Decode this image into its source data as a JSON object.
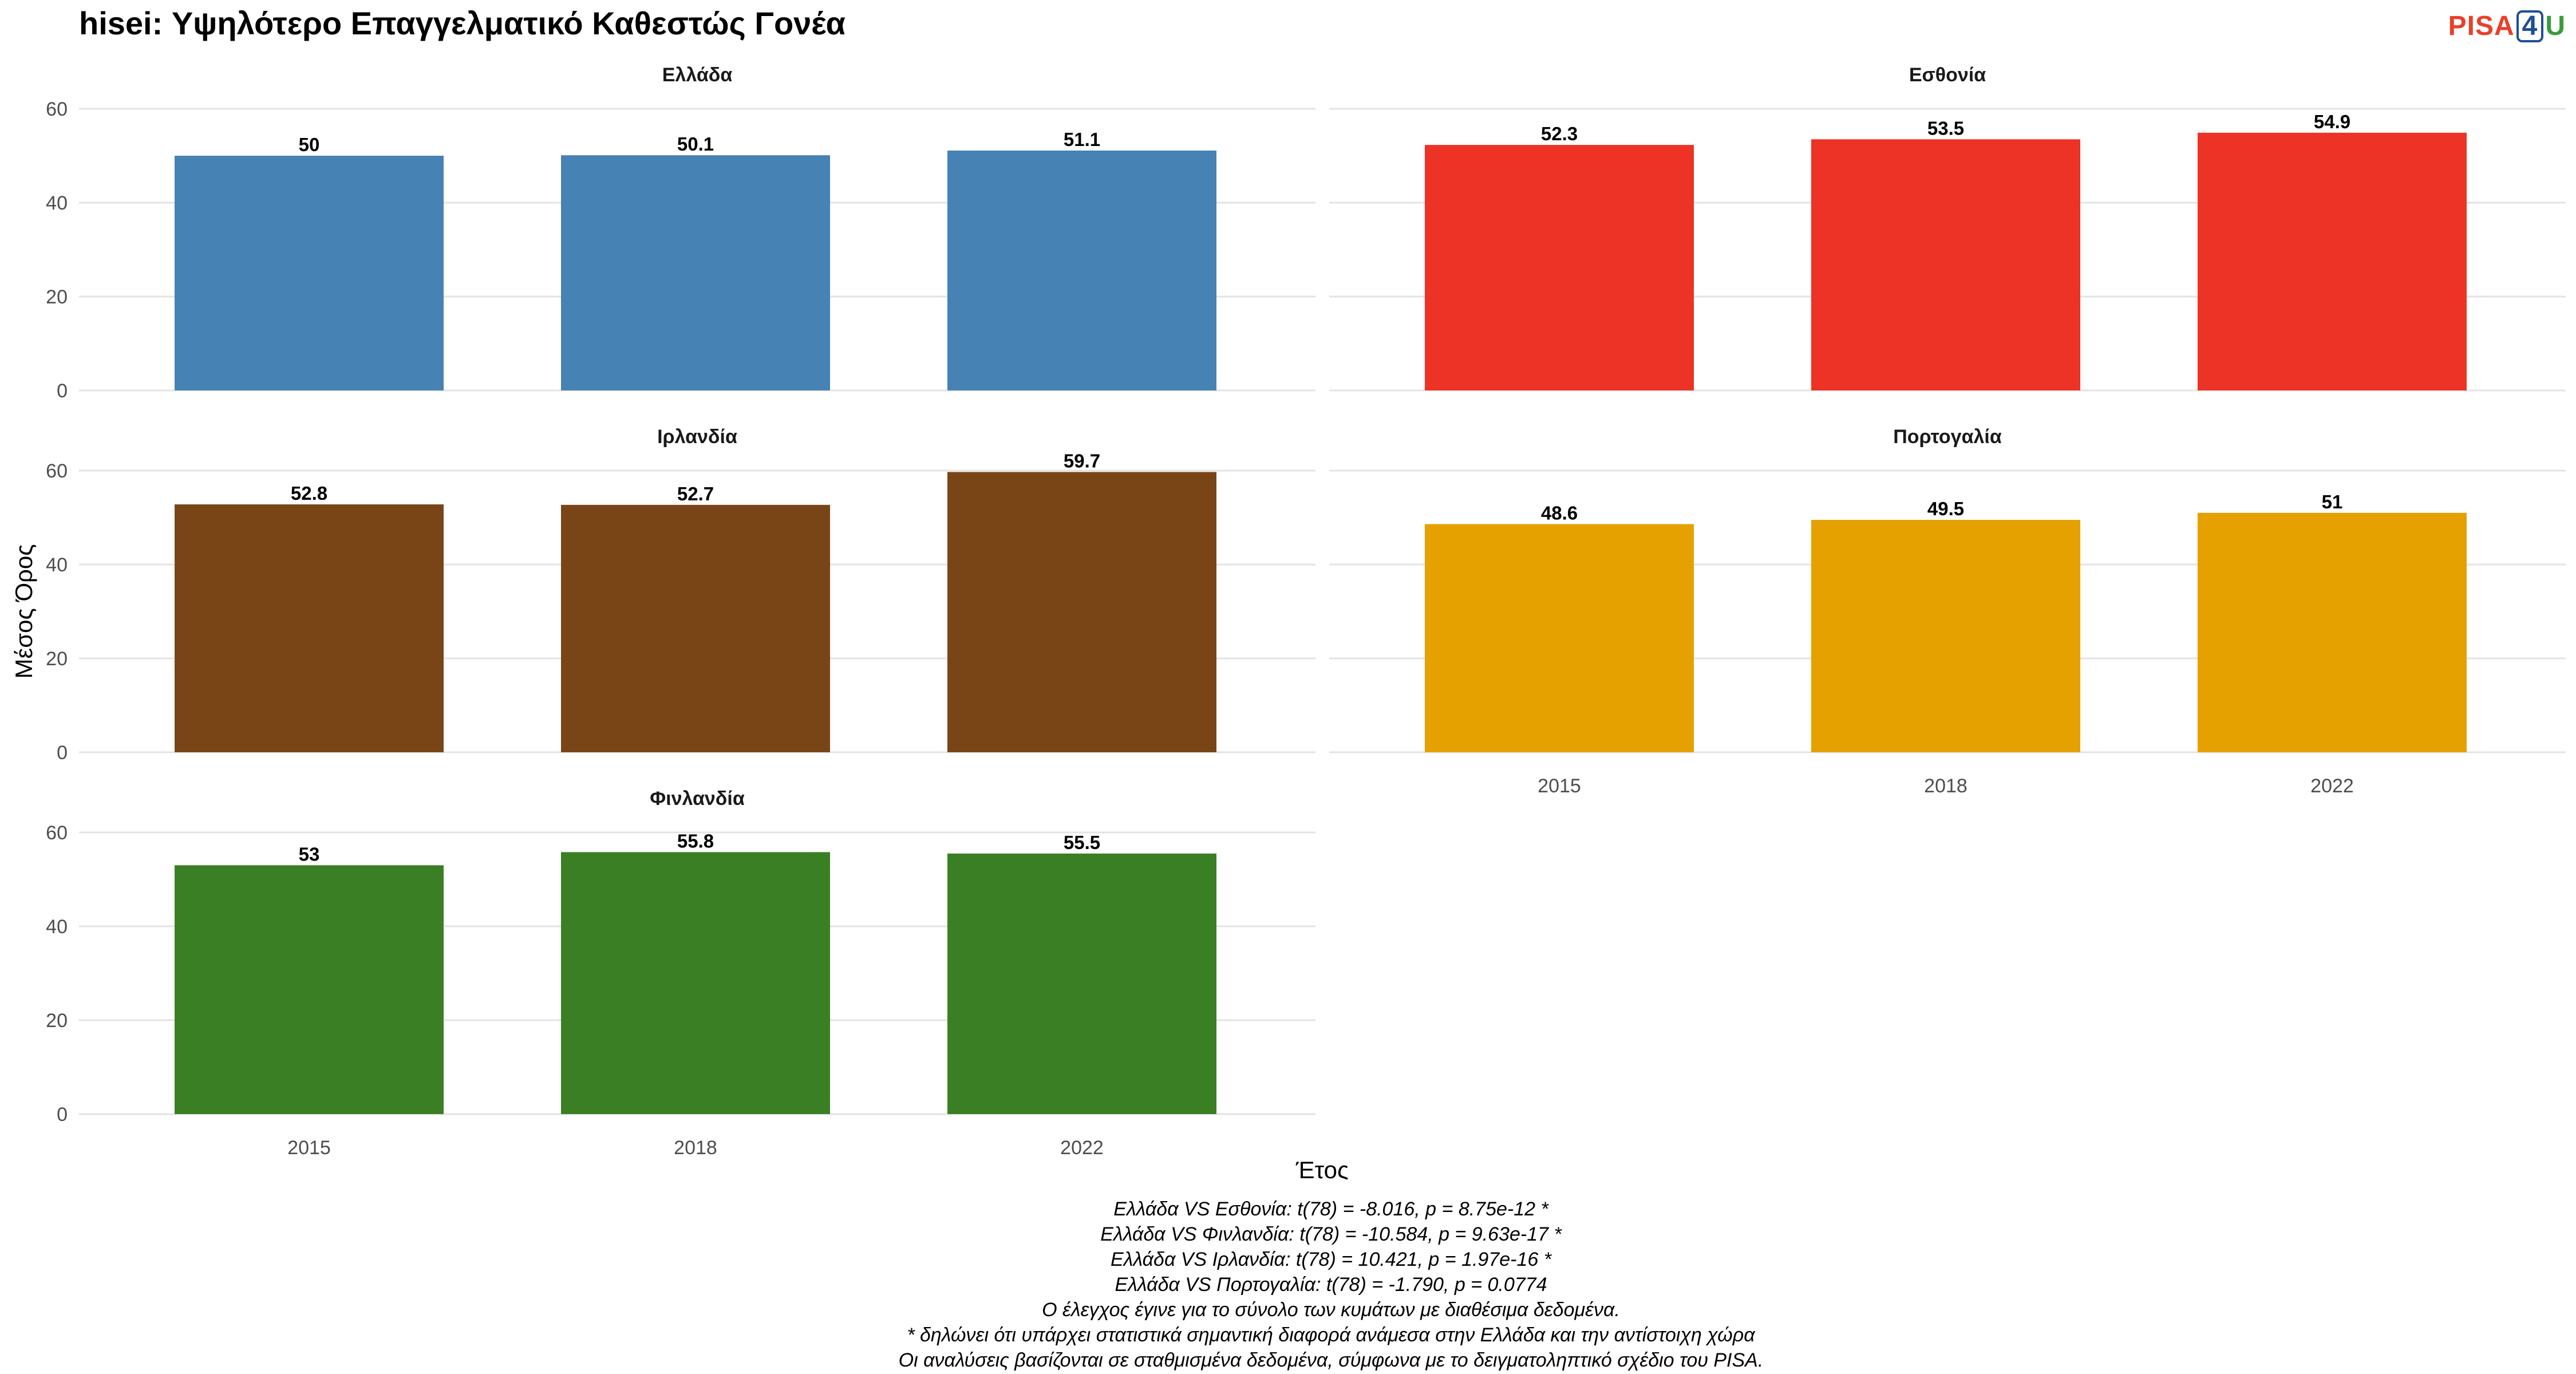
{
  "title": "hisei: Υψηλότερο Επαγγελματικό Καθεστώς Γονέα",
  "logo": {
    "p": "PISA",
    "four": "4",
    "u": "U"
  },
  "chart_data": {
    "type": "bar",
    "xlabel": "Έτος",
    "ylabel": "Μέσος Όρος",
    "ylim": [
      0,
      60
    ],
    "yticks": [
      0,
      20,
      40,
      60
    ],
    "categories": [
      "2015",
      "2018",
      "2022"
    ],
    "grid": true,
    "panels": [
      {
        "name": "Ελλάδα",
        "color": "#4682b4",
        "values": [
          50,
          50.1,
          51.1
        ],
        "labels": [
          "50",
          "50.1",
          "51.1"
        ]
      },
      {
        "name": "Εσθονία",
        "color": "#ec3325",
        "values": [
          52.3,
          53.5,
          54.9
        ],
        "labels": [
          "52.3",
          "53.5",
          "54.9"
        ]
      },
      {
        "name": "Ιρλανδία",
        "color": "#7a4516",
        "values": [
          52.8,
          52.7,
          59.7
        ],
        "labels": [
          "52.8",
          "52.7",
          "59.7"
        ]
      },
      {
        "name": "Πορτογαλία",
        "color": "#e5a100",
        "values": [
          48.6,
          49.5,
          51
        ],
        "labels": [
          "48.6",
          "49.5",
          "51"
        ]
      },
      {
        "name": "Φινλανδία",
        "color": "#3a7f23",
        "values": [
          53,
          55.8,
          55.5
        ],
        "labels": [
          "53",
          "55.8",
          "55.5"
        ]
      }
    ]
  },
  "notes": [
    "Ελλάδα VS Εσθονία: t(78) = -8.016, p = 8.75e-12 *",
    "Ελλάδα VS Φινλανδία: t(78) = -10.584, p = 9.63e-17 *",
    "Ελλάδα VS Ιρλανδία: t(78) = 10.421, p = 1.97e-16 *",
    "Ελλάδα VS Πορτογαλία: t(78) = -1.790, p = 0.0774",
    "Ο έλεγχος έγινε για το σύνολο των κυμάτων με διαθέσιμα δεδομένα.",
    "* δηλώνει ότι υπάρχει στατιστικά σημαντική διαφορά ανάμεσα στην Ελλάδα και την αντίστοιχη χώρα",
    "Οι αναλύσεις βασίζονται σε σταθμισμένα δεδομένα, σύμφωνα με το δειγματοληπτικό σχέδιο του PISA."
  ]
}
